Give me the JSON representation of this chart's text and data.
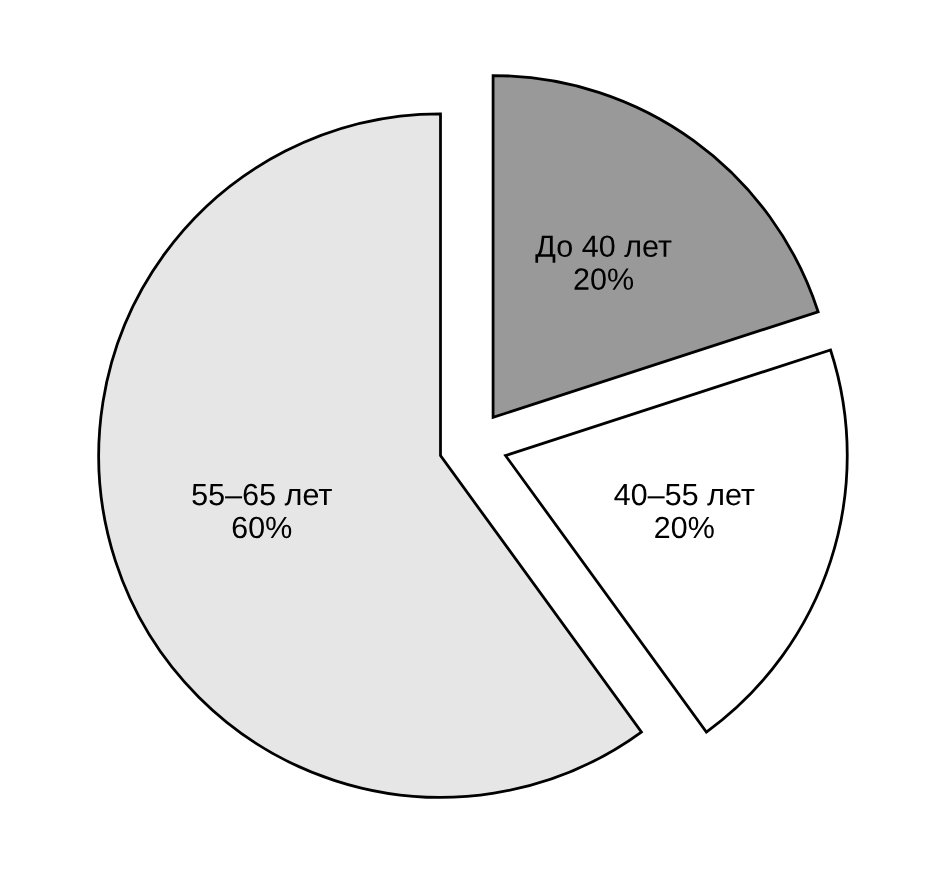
{
  "chart_data": {
    "type": "pie",
    "categories": [
      "До 40 лет",
      "40–55 лет",
      "55–65 лет"
    ],
    "values": [
      20,
      20,
      60
    ],
    "value_labels": [
      "20%",
      "20%",
      "60%"
    ],
    "colors": [
      "#999999",
      "#ffffff",
      "#e6e6e6"
    ]
  }
}
